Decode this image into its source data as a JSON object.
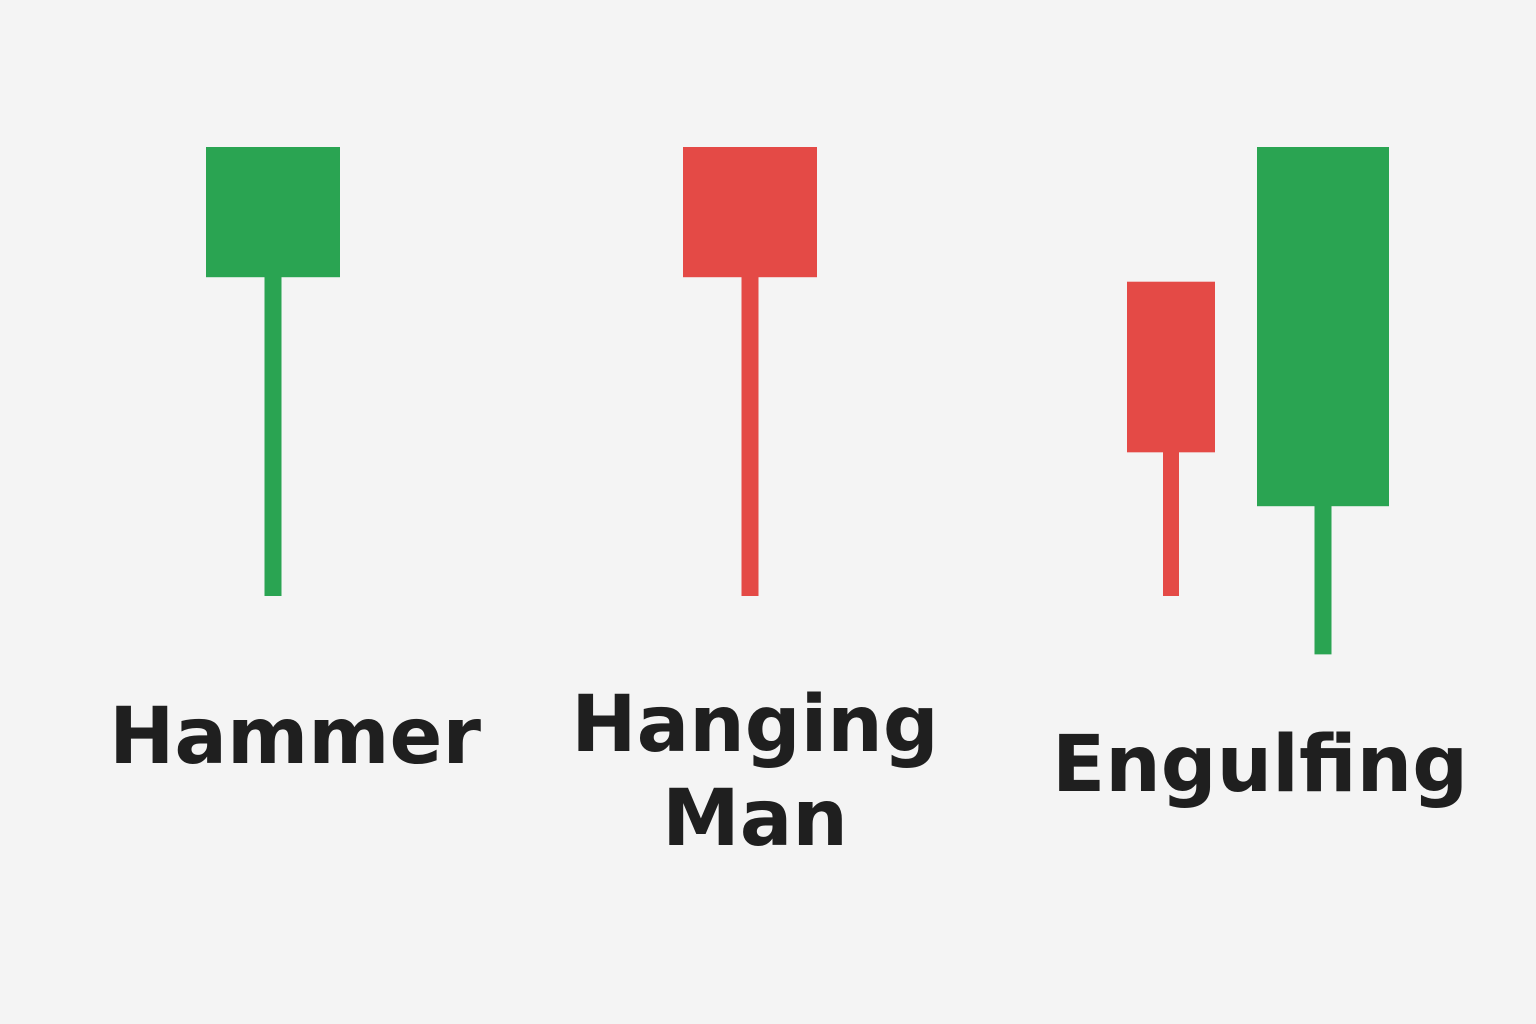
{
  "colors": {
    "background": "#f4f4f4",
    "bullish": "#2aa452",
    "bearish": "#e44a46",
    "text": "#1f1f1f"
  },
  "patterns": [
    {
      "name": "Hammer",
      "candles": [
        {
          "color": "bullish",
          "body_high": 1.0,
          "body_low": 0.71,
          "wick_low": 0.0
        }
      ]
    },
    {
      "name_line1": "Hanging",
      "name_line2": "Man",
      "candles": [
        {
          "color": "bearish",
          "body_high": 1.0,
          "body_low": 0.71,
          "wick_low": 0.0
        }
      ]
    },
    {
      "name": "Engulfing",
      "candles": [
        {
          "color": "bearish",
          "body_high": 0.7,
          "body_low": 0.32,
          "wick_low": 0.0
        },
        {
          "color": "bullish",
          "body_high": 1.0,
          "body_low": 0.2,
          "wick_low": -0.13
        }
      ]
    }
  ]
}
